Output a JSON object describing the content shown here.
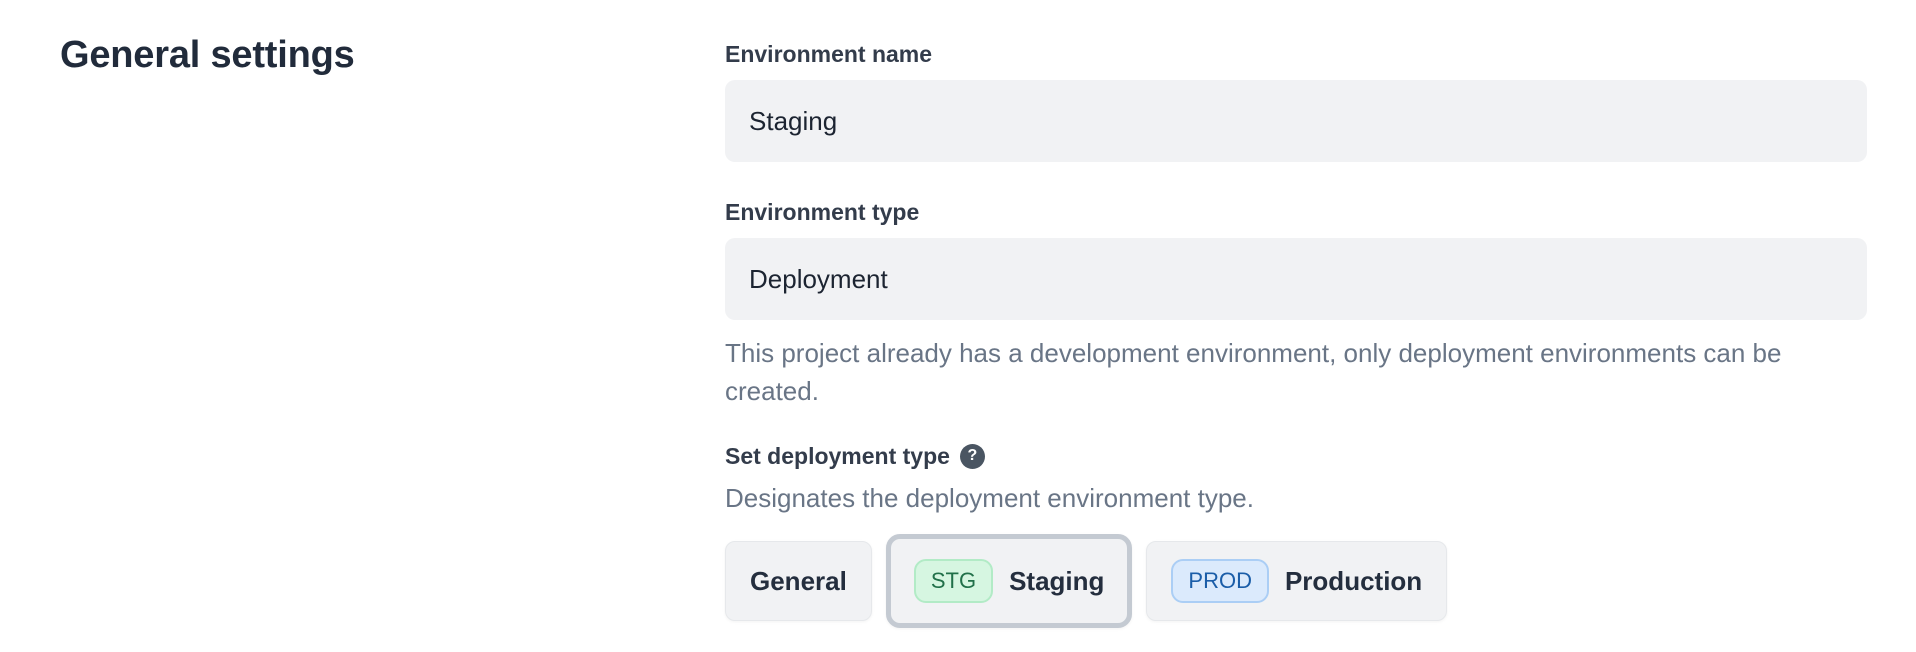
{
  "page": {
    "title": "General settings"
  },
  "form": {
    "environment_name": {
      "label": "Environment name",
      "value": "Staging"
    },
    "environment_type": {
      "label": "Environment type",
      "value": "Deployment",
      "help": "This project already has a development environment, only deployment environments can be created."
    },
    "deployment_type": {
      "label": "Set deployment type",
      "help_icon": "?",
      "description": "Designates the deployment environment type.",
      "options": [
        {
          "label": "General",
          "badge": "",
          "selected": false
        },
        {
          "label": "Staging",
          "badge": "STG",
          "selected": true
        },
        {
          "label": "Production",
          "badge": "PROD",
          "selected": false
        }
      ]
    }
  },
  "colors": {
    "heading_text": "#212b3b",
    "label_text": "#333c4b",
    "muted_text": "#697586",
    "input_bg": "#f1f2f4",
    "button_bg": "#f1f2f4",
    "selected_ring": "#c4cad2",
    "stg_badge_bg": "#d6f6e1",
    "stg_badge_border": "#b2ebc6",
    "stg_badge_text": "#217049",
    "prod_badge_bg": "#dbeafc",
    "prod_badge_border": "#abcef5",
    "prod_badge_text": "#1a5da8",
    "help_icon_bg": "#4a5562"
  }
}
